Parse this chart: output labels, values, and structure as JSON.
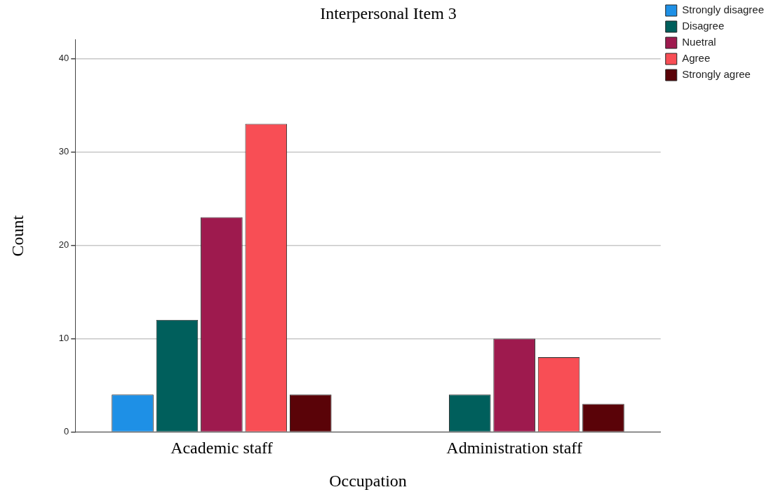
{
  "chart_data": {
    "type": "bar",
    "title": "Interpersonal Item 3",
    "xlabel": "Occupation",
    "ylabel": "Count",
    "categories": [
      "Academic staff",
      "Administration staff"
    ],
    "series": [
      {
        "name": "Strongly disagree",
        "color": "#1e90e6",
        "values": [
          4,
          null
        ]
      },
      {
        "name": "Disagree",
        "color": "#005f5c",
        "values": [
          12,
          4
        ]
      },
      {
        "name": "Nuetral",
        "color": "#9e1a4e",
        "values": [
          23,
          10
        ]
      },
      {
        "name": "Agree",
        "color": "#f84e55",
        "values": [
          33,
          8
        ]
      },
      {
        "name": "Strongly agree",
        "color": "#5a0308",
        "values": [
          4,
          3
        ]
      }
    ],
    "ylim": [
      0,
      42
    ],
    "yticks": [
      0,
      10,
      20,
      30,
      40
    ],
    "grid": "y",
    "legend": "top right"
  }
}
